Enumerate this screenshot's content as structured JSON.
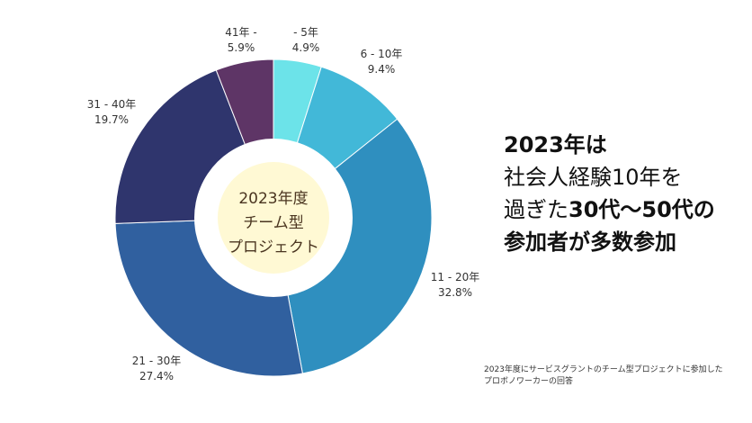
{
  "chart_data": {
    "type": "pie",
    "donut": true,
    "center_label": [
      "2023年度",
      "チーム型",
      "プロジェクト"
    ],
    "categories": [
      "- 5年",
      "6 - 10年",
      "11 - 20年",
      "21 - 30年",
      "31 - 40年",
      "41年 -"
    ],
    "values": [
      4.9,
      9.4,
      32.8,
      27.4,
      19.7,
      5.9
    ],
    "value_labels": [
      "4.9%",
      "9.4%",
      "32.8%",
      "27.4%",
      "19.7%",
      "5.9%"
    ],
    "colors": [
      "#6ce3e9",
      "#42b8d8",
      "#2f8fbf",
      "#30609f",
      "#2f356d",
      "#5e3566"
    ],
    "center_fill": "#fff9d4",
    "legend": "none"
  },
  "headline": {
    "line1_bold": "2023年は",
    "line2": "社会人経験10年を",
    "line3_regular": "過ぎた",
    "line3_bold": "30代〜50代の",
    "line4_bold": "参加者が多数参加"
  },
  "footnote": {
    "line1": "2023年度にサービスグラントのチーム型プロジェクトに参加した",
    "line2": "プロボノワーカーの回答"
  }
}
